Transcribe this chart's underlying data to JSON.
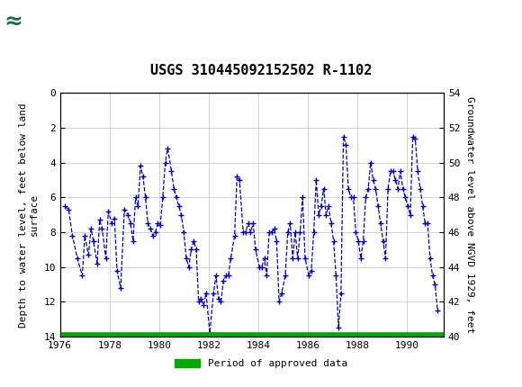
{
  "title": "USGS 310445092152502 R-1102",
  "ylabel_left": "Depth to water level, feet below land\nsurface",
  "ylabel_right": "Groundwater level above NGVD 1929, feet",
  "ylim_left": [
    14,
    0
  ],
  "ylim_right": [
    40,
    54
  ],
  "xlim": [
    1976,
    1991.5
  ],
  "yticks_left": [
    0,
    2,
    4,
    6,
    8,
    10,
    12,
    14
  ],
  "yticks_right": [
    40,
    42,
    44,
    46,
    48,
    50,
    52,
    54
  ],
  "xticks": [
    1976,
    1978,
    1980,
    1982,
    1984,
    1986,
    1988,
    1990
  ],
  "header_color": "#1d6b3e",
  "line_color": "#0000cc",
  "bar_color": "#00aa00",
  "data": [
    [
      1976.2,
      6.5
    ],
    [
      1976.35,
      6.7
    ],
    [
      1976.5,
      8.2
    ],
    [
      1976.7,
      9.5
    ],
    [
      1976.9,
      10.5
    ],
    [
      1977.0,
      8.2
    ],
    [
      1977.15,
      9.3
    ],
    [
      1977.25,
      7.8
    ],
    [
      1977.35,
      8.5
    ],
    [
      1977.5,
      9.8
    ],
    [
      1977.6,
      7.3
    ],
    [
      1977.7,
      7.8
    ],
    [
      1977.85,
      9.5
    ],
    [
      1977.95,
      6.8
    ],
    [
      1978.1,
      7.5
    ],
    [
      1978.2,
      7.2
    ],
    [
      1978.3,
      10.2
    ],
    [
      1978.45,
      11.2
    ],
    [
      1978.6,
      6.7
    ],
    [
      1978.75,
      7.0
    ],
    [
      1978.85,
      7.5
    ],
    [
      1978.95,
      8.5
    ],
    [
      1979.05,
      6.0
    ],
    [
      1979.15,
      6.5
    ],
    [
      1979.25,
      4.2
    ],
    [
      1979.35,
      4.8
    ],
    [
      1979.45,
      6.0
    ],
    [
      1979.55,
      7.5
    ],
    [
      1979.65,
      7.8
    ],
    [
      1979.75,
      8.2
    ],
    [
      1979.85,
      8.0
    ],
    [
      1979.95,
      7.5
    ],
    [
      1980.05,
      7.6
    ],
    [
      1980.15,
      6.0
    ],
    [
      1980.25,
      4.0
    ],
    [
      1980.35,
      3.2
    ],
    [
      1980.5,
      4.5
    ],
    [
      1980.6,
      5.5
    ],
    [
      1980.7,
      6.0
    ],
    [
      1980.8,
      6.5
    ],
    [
      1980.9,
      7.0
    ],
    [
      1981.0,
      8.0
    ],
    [
      1981.1,
      9.5
    ],
    [
      1981.2,
      10.0
    ],
    [
      1981.3,
      9.0
    ],
    [
      1981.4,
      8.5
    ],
    [
      1981.5,
      9.0
    ],
    [
      1981.6,
      12.0
    ],
    [
      1981.7,
      11.8
    ],
    [
      1981.8,
      12.2
    ],
    [
      1981.9,
      11.5
    ],
    [
      1982.05,
      13.8
    ],
    [
      1982.2,
      11.5
    ],
    [
      1982.3,
      10.5
    ],
    [
      1982.4,
      11.8
    ],
    [
      1982.5,
      12.0
    ],
    [
      1982.6,
      10.8
    ],
    [
      1982.7,
      10.5
    ],
    [
      1982.8,
      10.5
    ],
    [
      1982.9,
      9.5
    ],
    [
      1983.05,
      8.2
    ],
    [
      1983.15,
      4.8
    ],
    [
      1983.25,
      5.0
    ],
    [
      1983.4,
      8.0
    ],
    [
      1983.5,
      8.0
    ],
    [
      1983.6,
      7.5
    ],
    [
      1983.7,
      8.0
    ],
    [
      1983.8,
      7.5
    ],
    [
      1983.9,
      9.0
    ],
    [
      1984.05,
      10.0
    ],
    [
      1984.15,
      10.0
    ],
    [
      1984.25,
      9.5
    ],
    [
      1984.35,
      10.5
    ],
    [
      1984.45,
      8.0
    ],
    [
      1984.55,
      8.0
    ],
    [
      1984.65,
      7.8
    ],
    [
      1984.75,
      8.5
    ],
    [
      1984.85,
      12.0
    ],
    [
      1984.95,
      11.5
    ],
    [
      1985.1,
      10.5
    ],
    [
      1985.2,
      8.0
    ],
    [
      1985.3,
      7.5
    ],
    [
      1985.4,
      9.5
    ],
    [
      1985.5,
      8.0
    ],
    [
      1985.6,
      9.5
    ],
    [
      1985.7,
      8.0
    ],
    [
      1985.8,
      6.0
    ],
    [
      1985.9,
      9.5
    ],
    [
      1986.05,
      10.5
    ],
    [
      1986.15,
      10.2
    ],
    [
      1986.25,
      8.0
    ],
    [
      1986.35,
      5.0
    ],
    [
      1986.45,
      7.0
    ],
    [
      1986.55,
      6.5
    ],
    [
      1986.65,
      5.5
    ],
    [
      1986.75,
      7.0
    ],
    [
      1986.85,
      6.5
    ],
    [
      1986.95,
      7.5
    ],
    [
      1987.05,
      8.5
    ],
    [
      1987.15,
      10.5
    ],
    [
      1987.25,
      13.5
    ],
    [
      1987.35,
      11.5
    ],
    [
      1987.45,
      2.5
    ],
    [
      1987.55,
      3.0
    ],
    [
      1987.65,
      5.5
    ],
    [
      1987.75,
      6.0
    ],
    [
      1987.85,
      6.0
    ],
    [
      1987.95,
      8.0
    ],
    [
      1988.05,
      8.5
    ],
    [
      1988.15,
      9.5
    ],
    [
      1988.25,
      8.5
    ],
    [
      1988.35,
      6.0
    ],
    [
      1988.45,
      5.5
    ],
    [
      1988.55,
      4.0
    ],
    [
      1988.65,
      5.0
    ],
    [
      1988.75,
      5.5
    ],
    [
      1988.85,
      6.5
    ],
    [
      1988.95,
      7.5
    ],
    [
      1989.05,
      8.5
    ],
    [
      1989.15,
      9.5
    ],
    [
      1989.25,
      5.5
    ],
    [
      1989.35,
      4.5
    ],
    [
      1989.45,
      4.5
    ],
    [
      1989.55,
      5.0
    ],
    [
      1989.65,
      5.5
    ],
    [
      1989.75,
      4.5
    ],
    [
      1989.85,
      5.5
    ],
    [
      1989.95,
      6.0
    ],
    [
      1990.05,
      6.5
    ],
    [
      1990.15,
      7.0
    ],
    [
      1990.25,
      2.5
    ],
    [
      1990.35,
      2.6
    ],
    [
      1990.45,
      4.5
    ],
    [
      1990.55,
      5.5
    ],
    [
      1990.65,
      6.5
    ],
    [
      1990.75,
      7.5
    ],
    [
      1990.85,
      7.5
    ],
    [
      1990.95,
      9.5
    ],
    [
      1991.05,
      10.5
    ],
    [
      1991.15,
      11.0
    ],
    [
      1991.25,
      12.5
    ]
  ]
}
